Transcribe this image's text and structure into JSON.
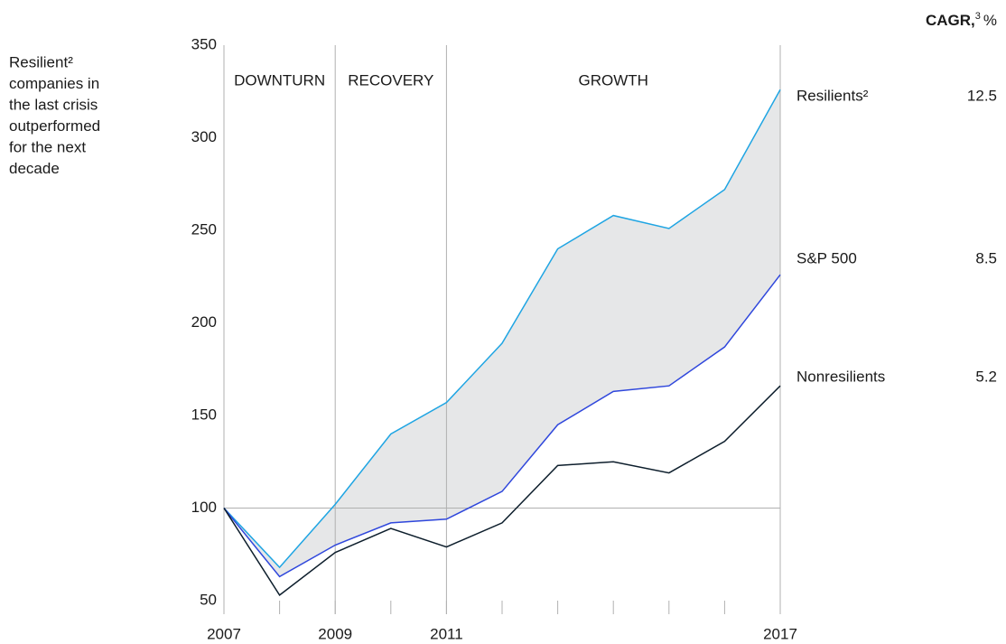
{
  "chart_data": {
    "type": "line",
    "annotation": [
      "Resilient²",
      "companies in",
      "the last crisis",
      "outperformed",
      "for the next",
      "decade"
    ],
    "header": {
      "label": "CAGR,",
      "note": "3",
      "unit": "%"
    },
    "x": [
      2007,
      2008,
      2009,
      2010,
      2011,
      2012,
      2013,
      2014,
      2015,
      2016,
      2017
    ],
    "series": [
      {
        "name": "Resilients²",
        "color": "#1fa5e3",
        "cagr": 12.5,
        "values": [
          100,
          68,
          102,
          140,
          157,
          189,
          240,
          258,
          251,
          272,
          326
        ]
      },
      {
        "name": "S&P 500",
        "color": "#2f47dc",
        "cagr": 8.5,
        "values": [
          100,
          63,
          80,
          92,
          94,
          109,
          145,
          163,
          166,
          187,
          226
        ]
      },
      {
        "name": "Nonresilients",
        "color": "#0d1e2c",
        "cagr": 5.2,
        "values": [
          100,
          53,
          76,
          89,
          79,
          92,
          123,
          125,
          119,
          136,
          166
        ]
      }
    ],
    "fill_between": [
      "Resilients²",
      "S&P 500"
    ],
    "fill_color": "#e6e7e8",
    "phases": [
      {
        "label": "DOWNTURN",
        "start": 2007,
        "end": 2009
      },
      {
        "label": "RECOVERY",
        "start": 2009,
        "end": 2011
      },
      {
        "label": "GROWTH",
        "start": 2011,
        "end": 2017
      }
    ],
    "reference_line": 100,
    "xlim": [
      2007,
      2017
    ],
    "xticks": [
      2007,
      2009,
      2011,
      2017
    ],
    "ylim": [
      50,
      350
    ],
    "yticks": [
      50,
      100,
      150,
      200,
      250,
      300,
      350
    ]
  }
}
